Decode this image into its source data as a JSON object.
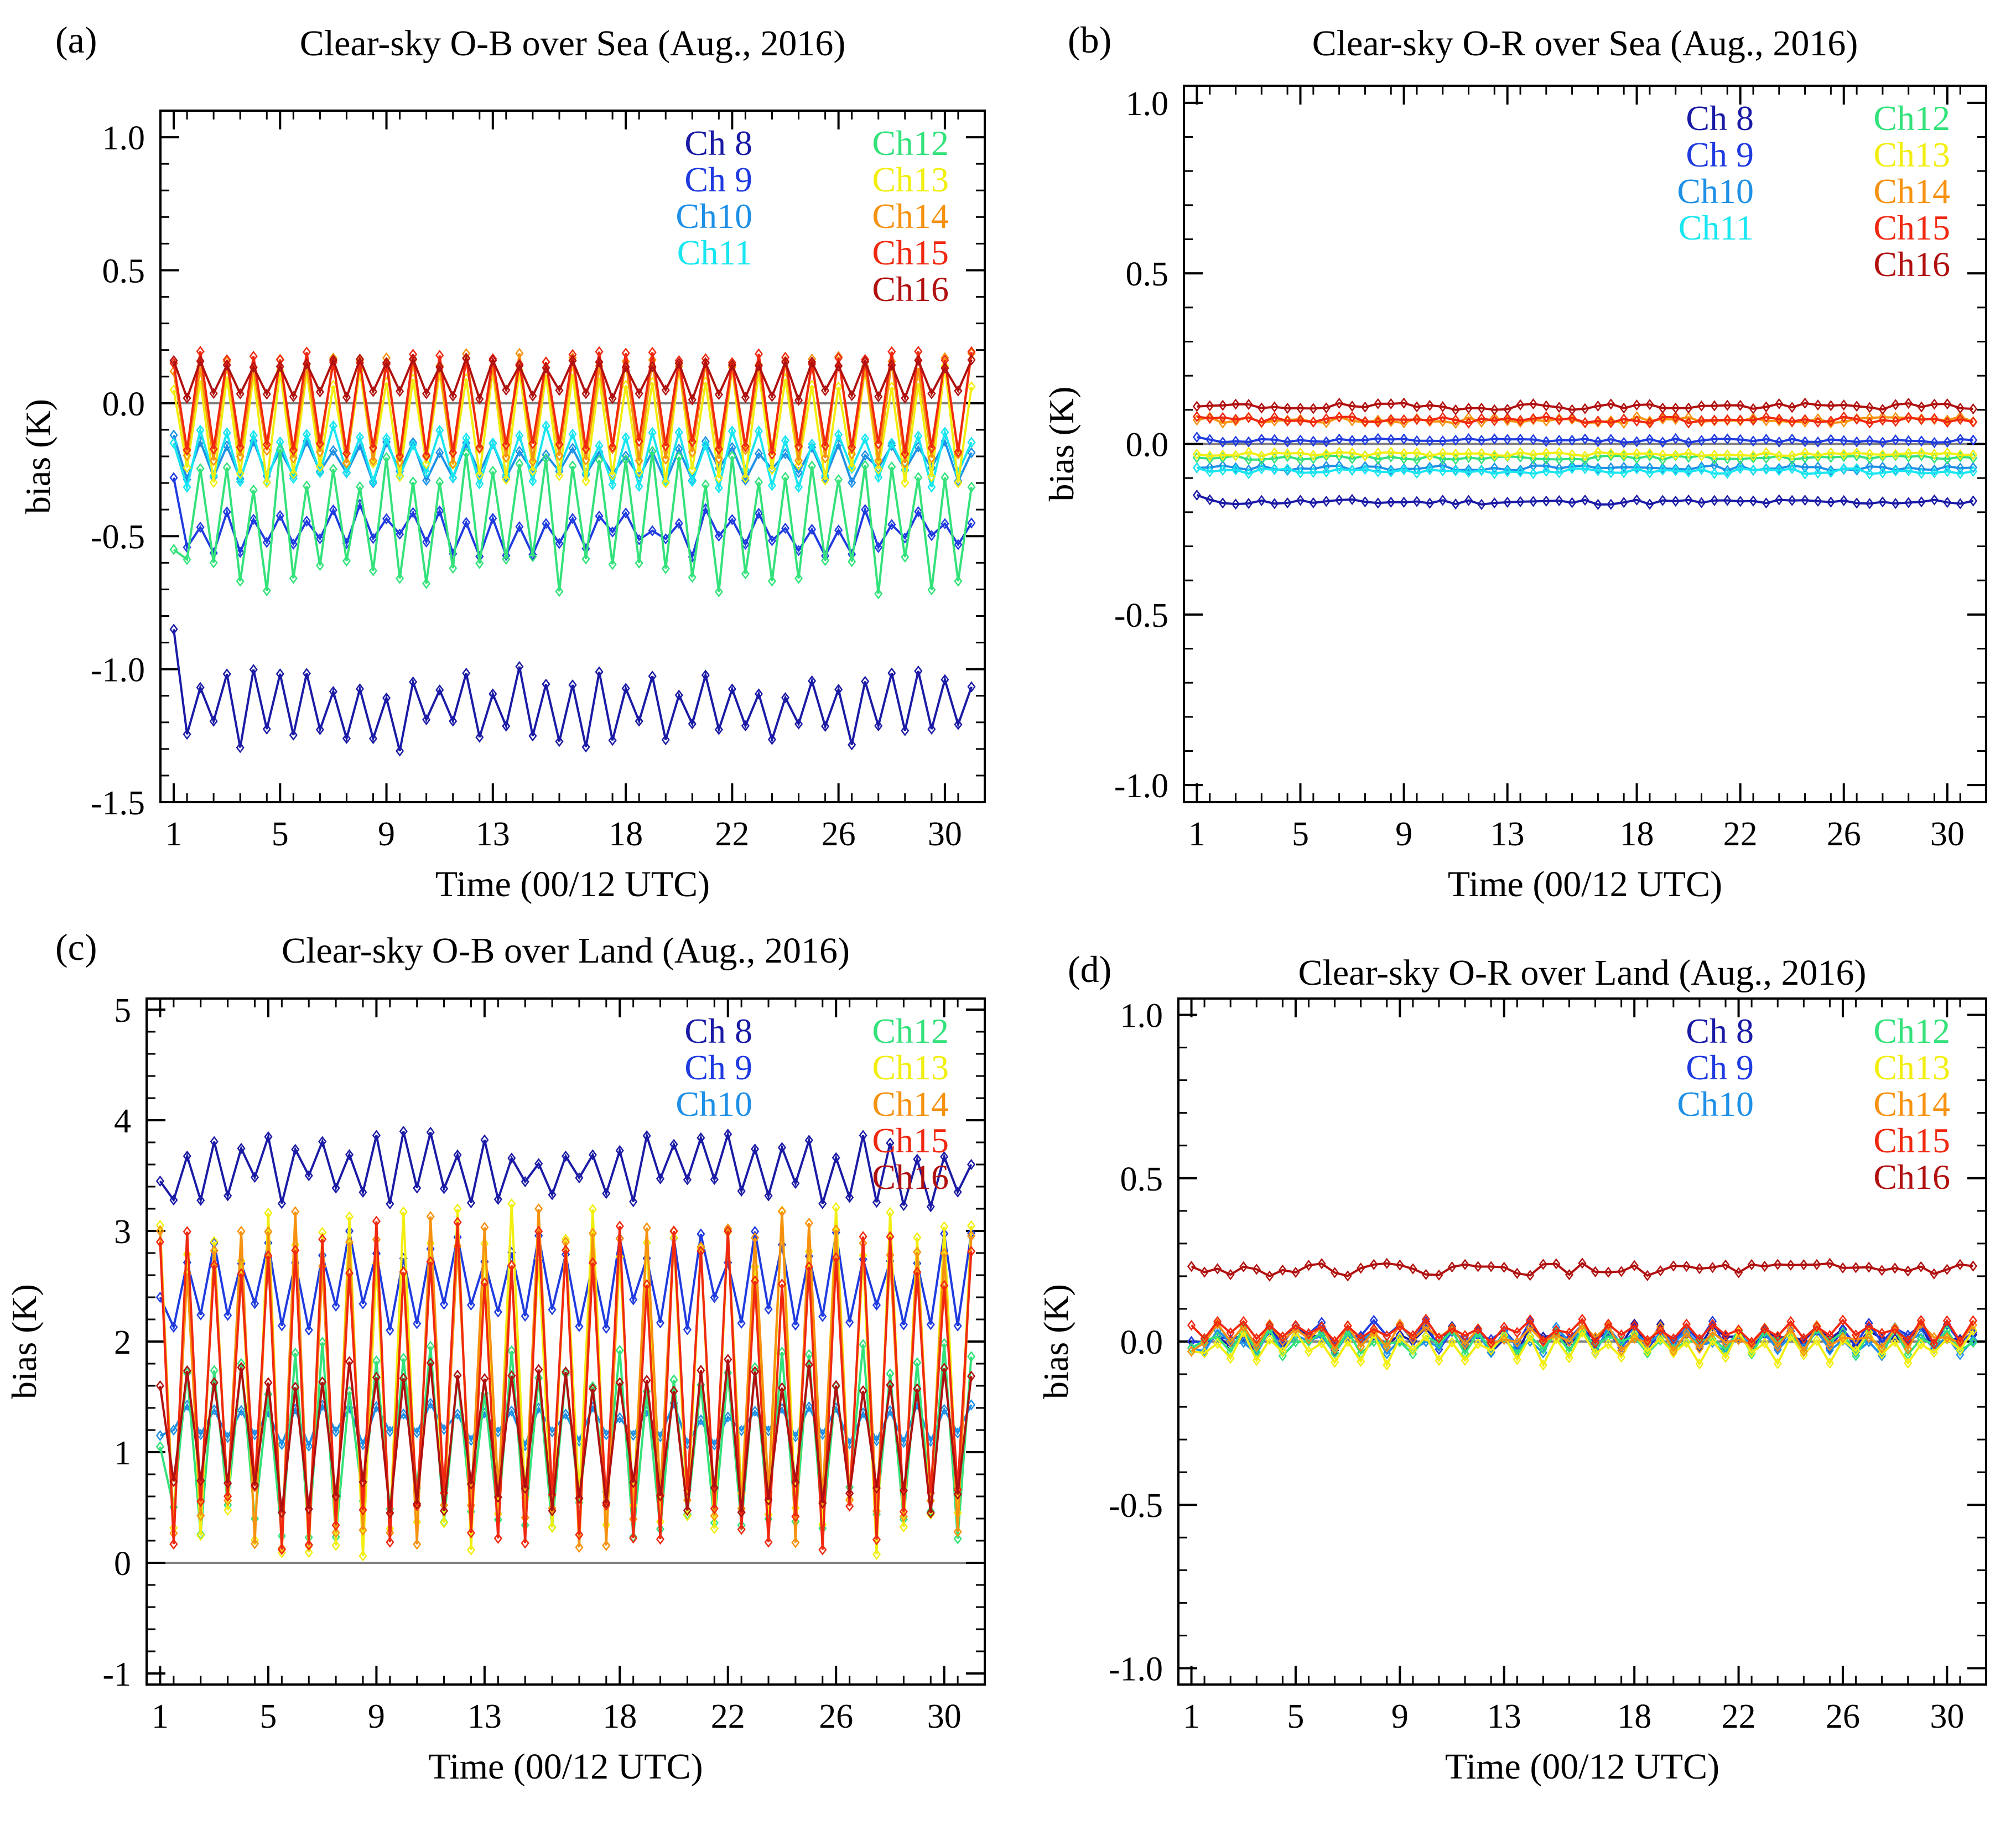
{
  "colors": {
    "Ch 8": "#1a1aa6",
    "Ch 9": "#1f3be0",
    "Ch10": "#1e90e6",
    "Ch11": "#18e6f0",
    "Ch12": "#33e27a",
    "Ch13": "#f2ee10",
    "Ch14": "#f6920f",
    "Ch15": "#f02810",
    "Ch16": "#b0100f",
    "zero": "#808080"
  },
  "x_axis": {
    "ticks": [
      "1",
      "5",
      "9",
      "13",
      "18",
      "22",
      "26",
      "30"
    ],
    "range": [
      0,
      62
    ],
    "xlabel": "Time (00/12 UTC)"
  },
  "chart_data": [
    {
      "type": "line",
      "panel": "(a)",
      "title": "Clear-sky O-B over Sea (Aug., 2016)",
      "ylabel": "bias (K)",
      "ylim": [
        -1.5,
        1.1
      ],
      "yticks": [
        "1.0",
        "0.5",
        "0.0",
        "-0.5",
        "-1.0",
        "-1.5"
      ],
      "ytick_values": [
        1.0,
        0.5,
        0.0,
        -0.5,
        -1.0,
        -1.5
      ],
      "legend": {
        "col1": [
          "Ch 8",
          "Ch 9",
          "Ch10",
          "Ch11"
        ],
        "col2": [
          "Ch12",
          "Ch13",
          "Ch14",
          "Ch15",
          "Ch16"
        ]
      },
      "series": [
        {
          "name": "Ch 8",
          "base": -1.15,
          "amp": 0.1,
          "jit": 0.06,
          "seed": 1,
          "start": -0.85
        },
        {
          "name": "Ch 9",
          "base": -0.48,
          "amp": 0.05,
          "jit": 0.05,
          "seed": 2,
          "start": -0.28
        },
        {
          "name": "Ch10",
          "base": -0.22,
          "amp": 0.05,
          "jit": 0.03,
          "seed": 3,
          "start": -0.12
        },
        {
          "name": "Ch11",
          "base": -0.2,
          "amp": 0.08,
          "jit": 0.04,
          "seed": 4,
          "start": -0.15
        },
        {
          "name": "Ch12",
          "base": -0.45,
          "amp": 0.2,
          "jit": 0.08,
          "seed": 5,
          "start": -0.55
        },
        {
          "name": "Ch13",
          "base": -0.08,
          "amp": 0.18,
          "jit": 0.04,
          "seed": 6,
          "start": 0.05
        },
        {
          "name": "Ch14",
          "base": -0.02,
          "amp": 0.18,
          "jit": 0.03,
          "seed": 7,
          "start": 0.12
        },
        {
          "name": "Ch15",
          "base": 0.0,
          "amp": 0.17,
          "jit": 0.03,
          "seed": 8,
          "start": 0.15
        },
        {
          "name": "Ch16",
          "base": 0.09,
          "amp": 0.06,
          "jit": 0.02,
          "seed": 9,
          "start": 0.16
        }
      ]
    },
    {
      "type": "line",
      "panel": "(b)",
      "title": "Clear-sky O-R over Sea (Aug., 2016)",
      "ylabel": "bias (K)",
      "ylim": [
        -1.05,
        1.05
      ],
      "yticks": [
        "1.0",
        "0.5",
        "0.0",
        "-0.5",
        "-1.0"
      ],
      "ytick_values": [
        1.0,
        0.5,
        0.0,
        -0.5,
        -1.0
      ],
      "legend": {
        "col1": [
          "Ch 8",
          "Ch 9",
          "Ch10",
          "Ch11"
        ],
        "col2": [
          "Ch12",
          "Ch13",
          "Ch14",
          "Ch15",
          "Ch16"
        ]
      },
      "series": [
        {
          "name": "Ch 8",
          "base": -0.17,
          "amp": 0.0,
          "jit": 0.008,
          "seed": 11,
          "start": -0.15
        },
        {
          "name": "Ch 9",
          "base": 0.01,
          "amp": 0.0,
          "jit": 0.006,
          "seed": 12,
          "start": 0.02
        },
        {
          "name": "Ch10",
          "base": -0.07,
          "amp": 0.0,
          "jit": 0.008,
          "seed": 13,
          "start": -0.07
        },
        {
          "name": "Ch11",
          "base": -0.08,
          "amp": 0.0,
          "jit": 0.008,
          "seed": 14,
          "start": -0.07
        },
        {
          "name": "Ch12",
          "base": -0.04,
          "amp": 0.0,
          "jit": 0.006,
          "seed": 15,
          "start": -0.04
        },
        {
          "name": "Ch13",
          "base": -0.03,
          "amp": 0.0,
          "jit": 0.006,
          "seed": 16,
          "start": -0.03
        },
        {
          "name": "Ch14",
          "base": 0.07,
          "amp": 0.0,
          "jit": 0.01,
          "seed": 17,
          "start": 0.07
        },
        {
          "name": "Ch15",
          "base": 0.07,
          "amp": 0.0,
          "jit": 0.01,
          "seed": 18,
          "start": 0.08
        },
        {
          "name": "Ch16",
          "base": 0.11,
          "amp": 0.0,
          "jit": 0.01,
          "seed": 19,
          "start": 0.11
        }
      ]
    },
    {
      "type": "line",
      "panel": "(c)",
      "title": "Clear-sky O-B over Land (Aug., 2016)",
      "ylabel": "bias (K)",
      "ylim": [
        -1.1,
        5.1
      ],
      "yticks": [
        "5",
        "4",
        "3",
        "2",
        "1",
        "0",
        "-1"
      ],
      "ytick_values": [
        5,
        4,
        3,
        2,
        1,
        0,
        -1
      ],
      "legend": {
        "col1": [
          "Ch 8",
          "Ch 9",
          "Ch10"
        ],
        "col2": [
          "Ch12",
          "Ch13",
          "Ch14",
          "Ch15",
          "Ch16"
        ]
      },
      "series": [
        {
          "name": "Ch 8",
          "base": 3.55,
          "amp": 0.2,
          "jit": 0.15,
          "seed": 21,
          "start": 3.45
        },
        {
          "name": "Ch 9",
          "base": 2.55,
          "amp": 0.3,
          "jit": 0.15,
          "seed": 22,
          "start": 2.4
        },
        {
          "name": "Ch10",
          "base": 1.25,
          "amp": 0.12,
          "jit": 0.08,
          "seed": 23,
          "start": 1.15
        },
        {
          "name": "Ch12",
          "base": 1.1,
          "amp": 0.65,
          "jit": 0.25,
          "seed": 25,
          "start": 1.05
        },
        {
          "name": "Ch13",
          "base": 1.65,
          "amp": 1.3,
          "jit": 0.3,
          "seed": 26,
          "start": 3.05
        },
        {
          "name": "Ch14",
          "base": 1.65,
          "amp": 1.25,
          "jit": 0.3,
          "seed": 27,
          "start": 3.0
        },
        {
          "name": "Ch15",
          "base": 1.6,
          "amp": 1.2,
          "jit": 0.3,
          "seed": 28,
          "start": 2.9
        },
        {
          "name": "Ch16",
          "base": 1.15,
          "amp": 0.55,
          "jit": 0.15,
          "seed": 29,
          "start": 1.6
        }
      ]
    },
    {
      "type": "line",
      "panel": "(d)",
      "title": "Clear-sky O-R over Land (Aug., 2016)",
      "ylabel": "bias (K)",
      "ylim": [
        -1.05,
        1.05
      ],
      "yticks": [
        "1.0",
        "0.5",
        "0.0",
        "-0.5",
        "-1.0"
      ],
      "ytick_values": [
        1.0,
        0.5,
        0.0,
        -0.5,
        -1.0
      ],
      "legend": {
        "col1": [
          "Ch 8",
          "Ch 9",
          "Ch10"
        ],
        "col2": [
          "Ch12",
          "Ch13",
          "Ch14",
          "Ch15",
          "Ch16"
        ]
      },
      "series": [
        {
          "name": "Ch 8",
          "base": 0.01,
          "amp": 0.02,
          "jit": 0.025,
          "seed": 31,
          "start": 0.0
        },
        {
          "name": "Ch 9",
          "base": 0.02,
          "amp": 0.02,
          "jit": 0.025,
          "seed": 32,
          "start": 0.0
        },
        {
          "name": "Ch10",
          "base": 0.0,
          "amp": 0.02,
          "jit": 0.025,
          "seed": 33,
          "start": -0.02
        },
        {
          "name": "Ch12",
          "base": 0.0,
          "amp": 0.02,
          "jit": 0.025,
          "seed": 35,
          "start": -0.02
        },
        {
          "name": "Ch13",
          "base": -0.02,
          "amp": 0.03,
          "jit": 0.025,
          "seed": 36,
          "start": -0.03
        },
        {
          "name": "Ch14",
          "base": 0.01,
          "amp": 0.02,
          "jit": 0.025,
          "seed": 37,
          "start": -0.03
        },
        {
          "name": "Ch15",
          "base": 0.03,
          "amp": 0.02,
          "jit": 0.02,
          "seed": 38,
          "start": 0.05
        },
        {
          "name": "Ch16",
          "base": 0.22,
          "amp": 0.0,
          "jit": 0.02,
          "seed": 39,
          "start": 0.23
        }
      ]
    }
  ]
}
